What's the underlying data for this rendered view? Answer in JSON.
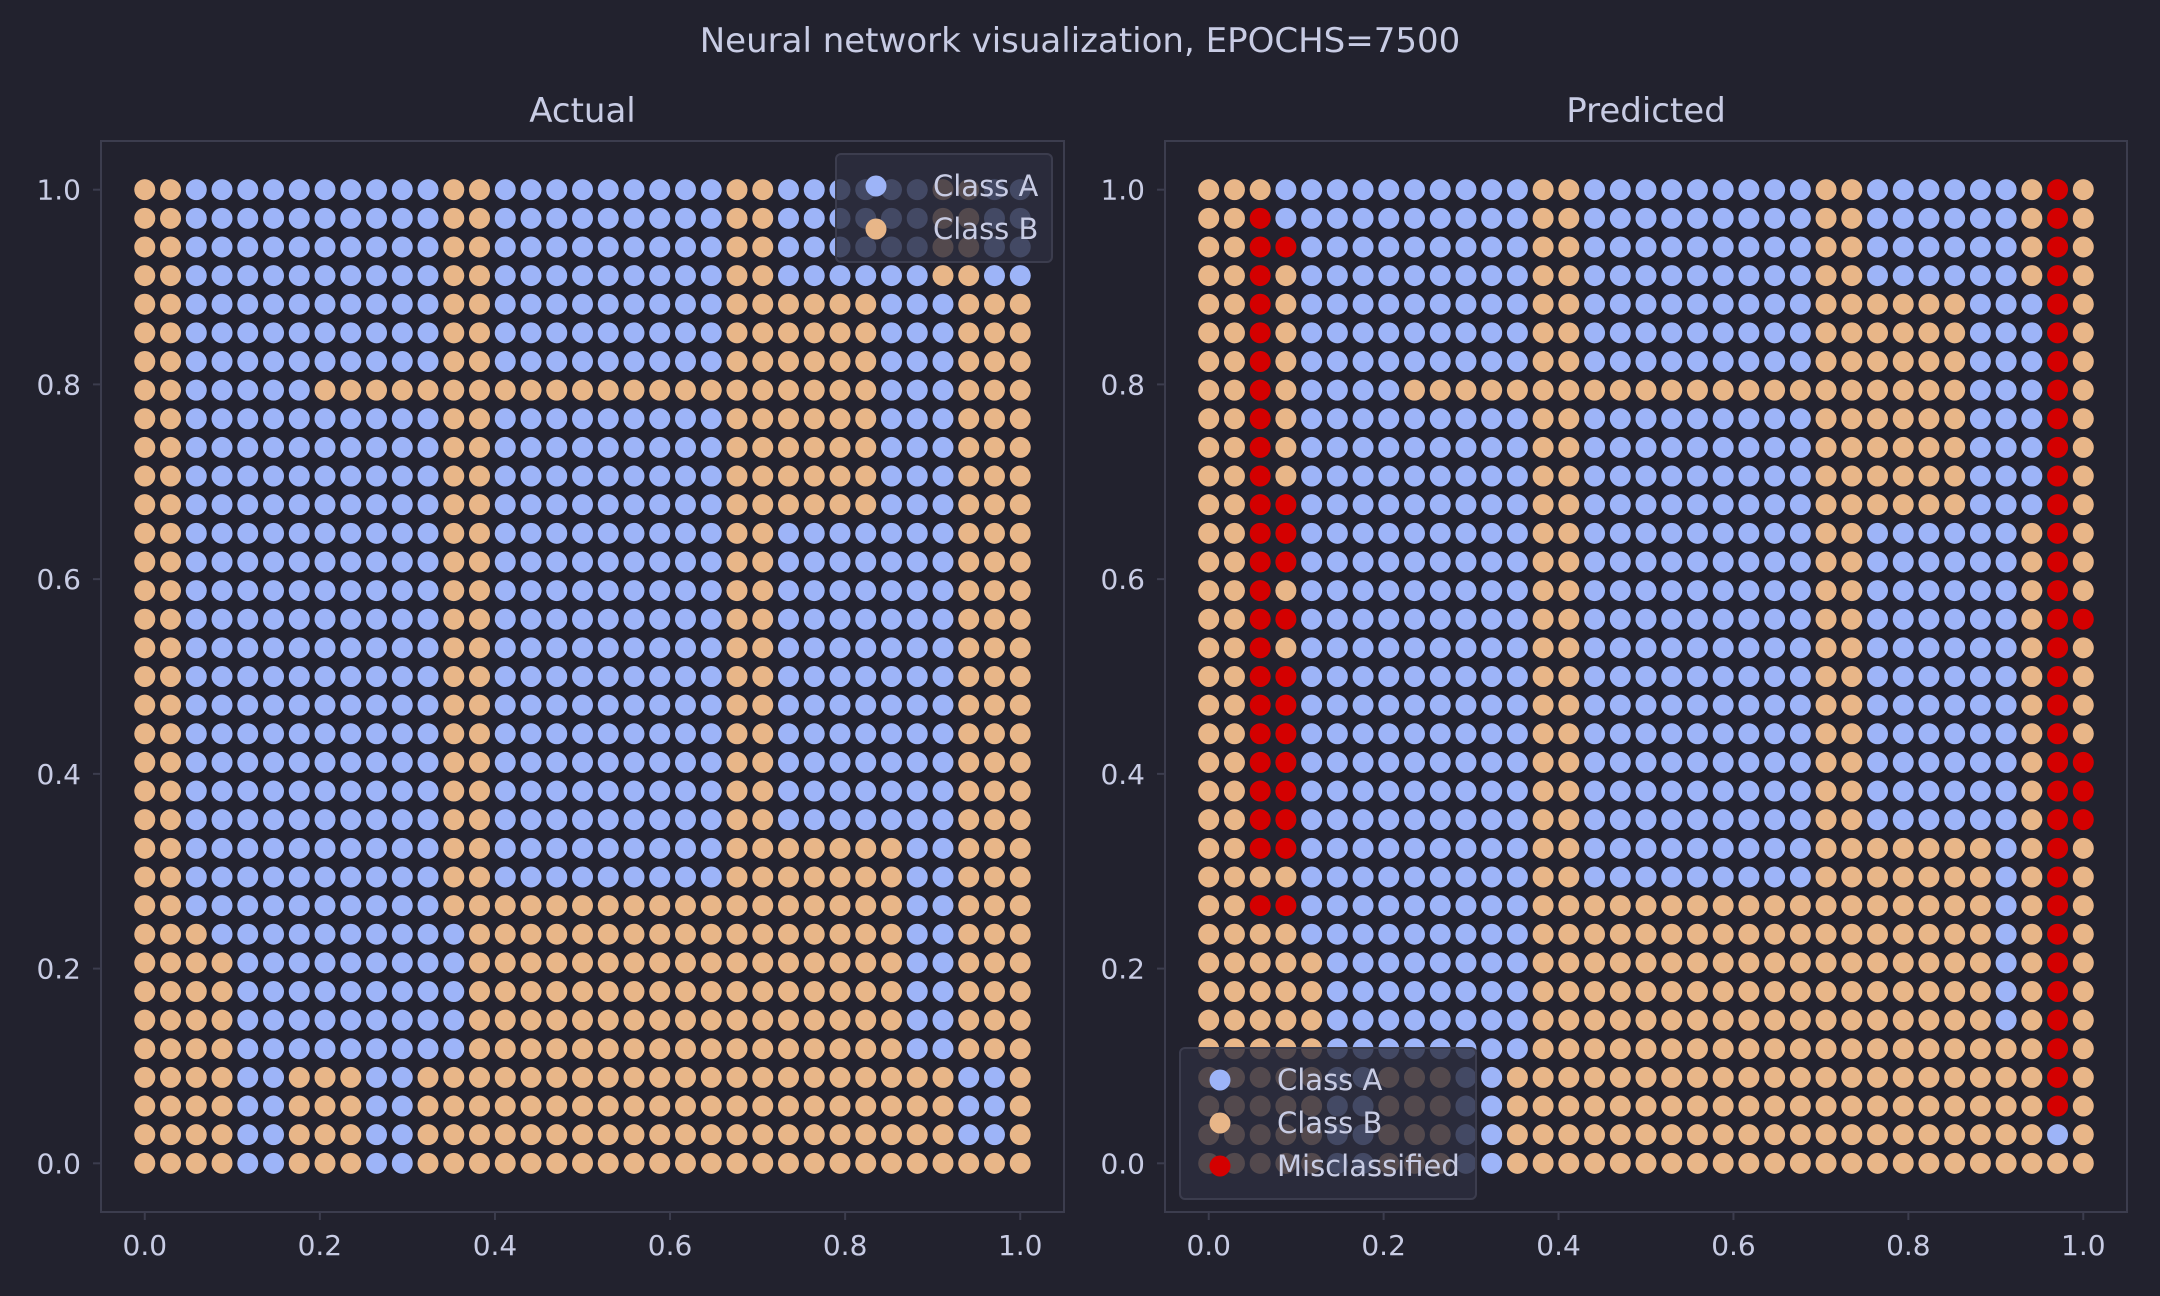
{
  "suptitle": "Neural network visualization, EPOCHS=7500",
  "colors": {
    "background": "#22222e",
    "axes_border": "#3c3d4e",
    "text": "#c8cce4",
    "class_a": "#9db4f8",
    "class_b": "#e8b688",
    "misclassified": "#d40000",
    "legend_bg": "#2d2e3e"
  },
  "chart_data": [
    {
      "type": "scatter",
      "title": "Actual",
      "xlim": [
        -0.05,
        1.05
      ],
      "ylim": [
        -0.05,
        1.05
      ],
      "xticks": [
        "0.0",
        "0.2",
        "0.4",
        "0.6",
        "0.8",
        "1.0"
      ],
      "yticks": [
        "0.0",
        "0.2",
        "0.4",
        "0.6",
        "0.8",
        "1.0"
      ],
      "grid": false,
      "legend": {
        "placement": "top-right",
        "entries": [
          "Class A",
          "Class B"
        ]
      },
      "grid_points": {
        "x_start": 0,
        "x_end": 1,
        "count": 35,
        "y_start": 0,
        "y_end": 1,
        "y_count": 35
      },
      "note_rows_top_to_bottom": "each string is one row at y from 1.0 down to 0.0; A = Class A, B = Class B",
      "rows": [
        "BBAAAAAAAAAABBAAAAAAAAABBAAAAAABBAA",
        "BBAAAAAAAAAABBAAAAAAAAABBAAAAAABBAA",
        "BBAAAAAAAAAABBAAAAAAAAABBAAAAAABBAA",
        "BBAAAAAAAAAABBAAAAAAAAABBAAAAAABBAA",
        "BBAAAAAAAAAABBAAAAAAAAABBBBBBAAABBB",
        "BBAAAAAAAAAABBAAAAAAAAABBBBBBAAABBB",
        "BBAAAAAAAAAABBAAAAAAAAABBBBBBAAABBB",
        "BBAAAAABBBBBBBBBBBBBBBBBBBBBBAAABBB",
        "BBAAAAAAAAAABBAAAAAAAAABBBBBBAAABBB",
        "BBAAAAAAAAAABBAAAAAAAAABBBBBBAAABBB",
        "BBAAAAAAAAAABBAAAAAAAAABBBBBBAAABBB",
        "BBAAAAAAAAAABBAAAAAAAAABBBBBBAAABBB",
        "BBAAAAAAAAAABBAAAAAAAAABBAAAAAAABBB",
        "BBAAAAAAAAAABBAAAAAAAAABBAAAAAAABBB",
        "BBAAAAAAAAAABBAAAAAAAAABBAAAAAAABBB",
        "BBAAAAAAAAAABBAAAAAAAAABBAAAAAAABBB",
        "BBAAAAAAAAAABBAAAAAAAAABBAAAAAAABBB",
        "BBAAAAAAAAAABBAAAAAAAAABBAAAAAAABBB",
        "BBAAAAAAAAAABBAAAAAAAAABBAAAAAAABBB",
        "BBAAAAAAAAAABBAAAAAAAAABBAAAAAAABBB",
        "BBAAAAAAAAAABBAAAAAAAAABBAAAAAAABBB",
        "BBAAAAAAAAAABBAAAAAAAAABBAAAAAAABBB",
        "BBAAAAAAAAAABBAAAAAAAAABBAAAAAAABBB",
        "BBAAAAAAAAAABBAAAAAAAAABBBBBBBAABBB",
        "BBAAAAAAAAAABBAAAAAAAAABBBBBBBAABBB",
        "BBAAAAAAAAAABBBBBBBBBBBBBBBBBBAABBB",
        "BBBAAAAAAAAAABBBBBBBBBBBBBBBBBAABBB",
        "BBBBAAAAAAAAABBBBBBBBBBBBBBBBBAABBB",
        "BBBBAAAAAAAAABBBBBBBBBBBBBBBBBAABBB",
        "BBBBAAAAAAAAABBBBBBBBBBBBBBBBBAABBB",
        "BBBBAAAAAAAAABBBBBBBBBBBBBBBBBAABBB",
        "BBBBAABBBAABBBBBBBBBBBBBBBBBBBBBAAB",
        "BBBBAABBBAABBBBBBBBBBBBBBBBBBBBBAAB",
        "BBBBAABBBAABBBBBBBBBBBBBBBBBBBBBAAB",
        "BBBBAABBBAABBBBBBBBBBBBBBBBBBBBBBBB"
      ]
    },
    {
      "type": "scatter",
      "title": "Predicted",
      "xlim": [
        -0.05,
        1.05
      ],
      "ylim": [
        -0.05,
        1.05
      ],
      "xticks": [
        "0.0",
        "0.2",
        "0.4",
        "0.6",
        "0.8",
        "1.0"
      ],
      "yticks": [
        "0.0",
        "0.2",
        "0.4",
        "0.6",
        "0.8",
        "1.0"
      ],
      "grid": false,
      "legend": {
        "placement": "bottom-left",
        "entries": [
          "Class A",
          "Class B",
          "Misclassified"
        ]
      },
      "grid_points": {
        "x_start": 0,
        "x_end": 1,
        "count": 35,
        "y_start": 0,
        "y_end": 1,
        "y_count": 35
      },
      "note_rows_top_to_bottom": "each string is one row at y from 1.0 down to 0.0; A = Class A, B = Class B, M = Misclassified",
      "rows": [
        "BBBAAAAAAAAAABBAAAAAAAAABBAAAAAABMB",
        "BBMAAAAAAAAAABBAAAAAAAAABBAAAAAABMB",
        "BBMMAAAAAAAAABBAAAAAAAAABBAAAAAABMB",
        "BBMBAAAAAAAAABBAAAAAAAAABBAAAAAABMB",
        "BBMBAAAAAAAAABBAAAAAAAAABBBBBBAAAMB",
        "BBMBAAAAAAAAABBAAAAAAAAABBBBBBAAAMB",
        "BBMBAAAAAAAAABBAAAAAAAAABBBBBBAAAMB",
        "BBMBAAAABBBBBBBBBBBBBBBBBBBBBBAAAMB",
        "BBMBAAAAAAAAABBAAAAAAAAABBBBBBAAAMB",
        "BBMBAAAAAAAAABBAAAAAAAAABBBBBBAAAMB",
        "BBMBAAAAAAAAABBAAAAAAAAABBBBBBAAAMB",
        "BBMMAAAAAAAAABBAAAAAAAAABBBBBBAAAMB",
        "BBMMAAAAAAAAABBAAAAAAAAABBAAAAAABMB",
        "BBMMAAAAAAAAABBAAAAAAAAABBAAAAAABMB",
        "BBMBAAAAAAAAABBAAAAAAAAABBAAAAAABMB",
        "BBMMAAAAAAAAABBAAAAAAAAABBAAAAAABMM",
        "BBMBAAAAAAAAABBAAAAAAAAABBAAAAAABMB",
        "BBMMAAAAAAAAABBAAAAAAAAABBAAAAAABMB",
        "BBMMAAAAAAAAABBAAAAAAAAABBAAAAAABMB",
        "BBMMAAAAAAAAABBAAAAAAAAABBAAAAAABMB",
        "BBMMAAAAAAAAABBAAAAAAAAABBAAAAAABMM",
        "BBMMAAAAAAAAABBAAAAAAAAABBAAAAAABMM",
        "BBMMAAAAAAAAABBAAAAAAAAABBAAAAAABMM",
        "BBMMAAAAAAAAABBAAAAAAAAABBBBBBBABMB",
        "BBBBAAAAAAAAABBAAAAAAAAABBBBBBBABMB",
        "BBMMAAAAAAAAABBBBBBBBBBBBBBBBBBABMB",
        "BBBBAAAAAAAAABBBBBBBBBBBBBBBBBBABMB",
        "BBBBBAAAAAAAABBBBBBBBBBBBBBBBBBABMB",
        "BBBBBAAAAAAAABBBBBBBBBBBBBBBBBBABMB",
        "BBBBBAAAAAAAABBBBBBBBBBBBBBBBBBABMB",
        "BBBBBAAAAAAAABBBBBBBBBBBBBBBBBBBBMB",
        "BBBBBAABBBAABBBBBBBBBBBBBBBBBBBBBMB",
        "BBBBBAABBBAABBBBBBBBBBBBBBBBBBBBBMB",
        "BBBBBAABBBAABBBBBBBBBBBBBBBBBBBBBAB",
        "BBBBBAABBBAABBBBBBBBBBBBBBBBBBBBBBB"
      ]
    }
  ]
}
